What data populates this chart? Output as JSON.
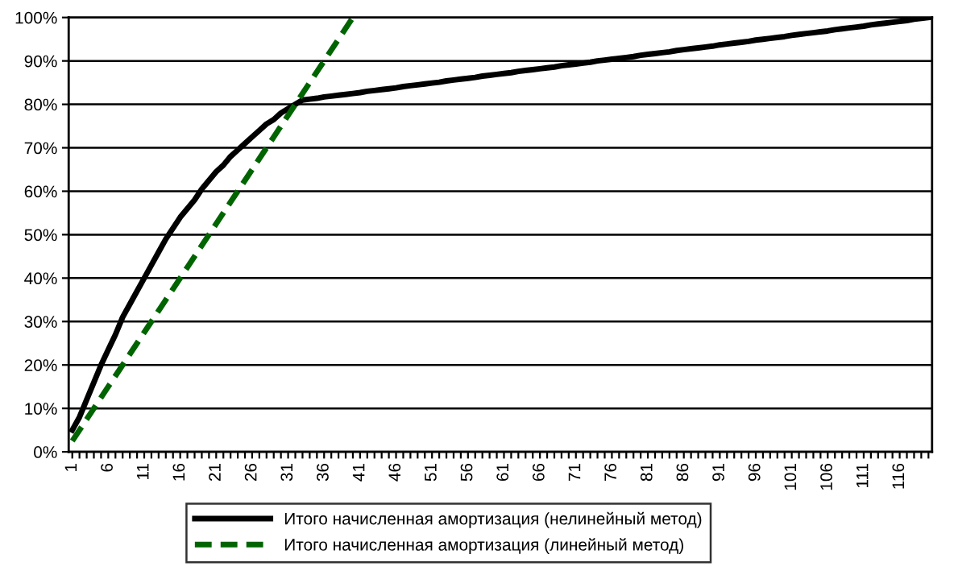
{
  "chart_data": {
    "type": "line",
    "categories": [
      "1",
      null,
      null,
      null,
      null,
      "6",
      null,
      null,
      null,
      null,
      "11",
      null,
      null,
      null,
      null,
      "16",
      null,
      null,
      null,
      null,
      "21",
      null,
      null,
      null,
      null,
      "26",
      null,
      null,
      null,
      null,
      "31",
      null,
      null,
      null,
      null,
      "36",
      null,
      null,
      null,
      null,
      "41",
      null,
      null,
      null,
      null,
      "46",
      null,
      null,
      null,
      null,
      "51",
      null,
      null,
      null,
      null,
      "56",
      null,
      null,
      null,
      null,
      "61",
      null,
      null,
      null,
      null,
      "66",
      null,
      null,
      null,
      null,
      "71",
      null,
      null,
      null,
      null,
      "76",
      null,
      null,
      null,
      null,
      "81",
      null,
      null,
      null,
      null,
      "86",
      null,
      null,
      null,
      null,
      "91",
      null,
      null,
      null,
      null,
      "96",
      null,
      null,
      null,
      null,
      "101",
      null,
      null,
      null,
      null,
      "106",
      null,
      null,
      null,
      null,
      "111",
      null,
      null,
      null,
      null,
      "116",
      null,
      null,
      null,
      null
    ],
    "series": [
      {
        "name": "Итого начисленная амортизация (нелинейный метод)",
        "color": "#000000",
        "line_style": "solid",
        "values": [
          5,
          8,
          12,
          16,
          20,
          23.5,
          27,
          31,
          34,
          37,
          40,
          43,
          46,
          49,
          51.5,
          54,
          56,
          58,
          60.5,
          62.5,
          64.5,
          66,
          68,
          69.5,
          71,
          72.5,
          74,
          75.5,
          76.5,
          78,
          79,
          80,
          81,
          81.2,
          81.4,
          81.7,
          81.9,
          82.1,
          82.3,
          82.5,
          82.7,
          83.0,
          83.2,
          83.4,
          83.6,
          83.8,
          84.1,
          84.3,
          84.5,
          84.7,
          84.9,
          85.1,
          85.4,
          85.6,
          85.8,
          86.0,
          86.2,
          86.5,
          86.7,
          86.9,
          87.1,
          87.3,
          87.6,
          87.8,
          88.0,
          88.2,
          88.4,
          88.6,
          88.9,
          89.1,
          89.3,
          89.5,
          89.7,
          90.0,
          90.2,
          90.4,
          90.6,
          90.8,
          91.0,
          91.3,
          91.5,
          91.7,
          91.9,
          92.1,
          92.4,
          92.6,
          92.8,
          93.0,
          93.2,
          93.4,
          93.7,
          93.9,
          94.1,
          94.3,
          94.5,
          94.8,
          95.0,
          95.2,
          95.4,
          95.6,
          95.9,
          96.1,
          96.3,
          96.5,
          96.7,
          96.9,
          97.2,
          97.4,
          97.6,
          97.8,
          98.0,
          98.3,
          98.5,
          98.7,
          98.9,
          99.1,
          99.3,
          99.6,
          99.8,
          100
        ]
      },
      {
        "name": "Итого начисленная амортизация (линейный метод)",
        "color": "#006400",
        "line_style": "dashed",
        "values": [
          2.5,
          5,
          7.5,
          10,
          12.5,
          15,
          17.5,
          20,
          22.5,
          25,
          27.5,
          30,
          32.5,
          35,
          37.5,
          40,
          42.5,
          45,
          47.5,
          50,
          52.5,
          55,
          57.5,
          60,
          62.5,
          65,
          67.5,
          70,
          72.5,
          75,
          77.5,
          80,
          82.5,
          85,
          87.5,
          90,
          92.5,
          95,
          97.5,
          100,
          null,
          null,
          null,
          null,
          null,
          null,
          null,
          null,
          null,
          null,
          null,
          null,
          null,
          null,
          null,
          null,
          null,
          null,
          null,
          null,
          null,
          null,
          null,
          null,
          null,
          null,
          null,
          null,
          null,
          null,
          null,
          null,
          null,
          null,
          null,
          null,
          null,
          null,
          null,
          null,
          null,
          null,
          null,
          null,
          null,
          null,
          null,
          null,
          null,
          null,
          null,
          null,
          null,
          null,
          null,
          null,
          null,
          null,
          null,
          null,
          null,
          null,
          null,
          null,
          null,
          null,
          null,
          null,
          null,
          null,
          null,
          null,
          null,
          null,
          null,
          null,
          null,
          null,
          null,
          null
        ]
      }
    ],
    "ylim": [
      0,
      100
    ],
    "yticks": [
      {
        "value": 0,
        "label": "0%"
      },
      {
        "value": 10,
        "label": "10%"
      },
      {
        "value": 20,
        "label": "20%"
      },
      {
        "value": 30,
        "label": "30%"
      },
      {
        "value": 40,
        "label": "40%"
      },
      {
        "value": 50,
        "label": "50%"
      },
      {
        "value": 60,
        "label": "60%"
      },
      {
        "value": 70,
        "label": "70%"
      },
      {
        "value": 80,
        "label": "80%"
      },
      {
        "value": 90,
        "label": "90%"
      },
      {
        "value": 100,
        "label": "100%"
      }
    ],
    "grid": "y",
    "legend": "bottom",
    "marker": "none"
  }
}
